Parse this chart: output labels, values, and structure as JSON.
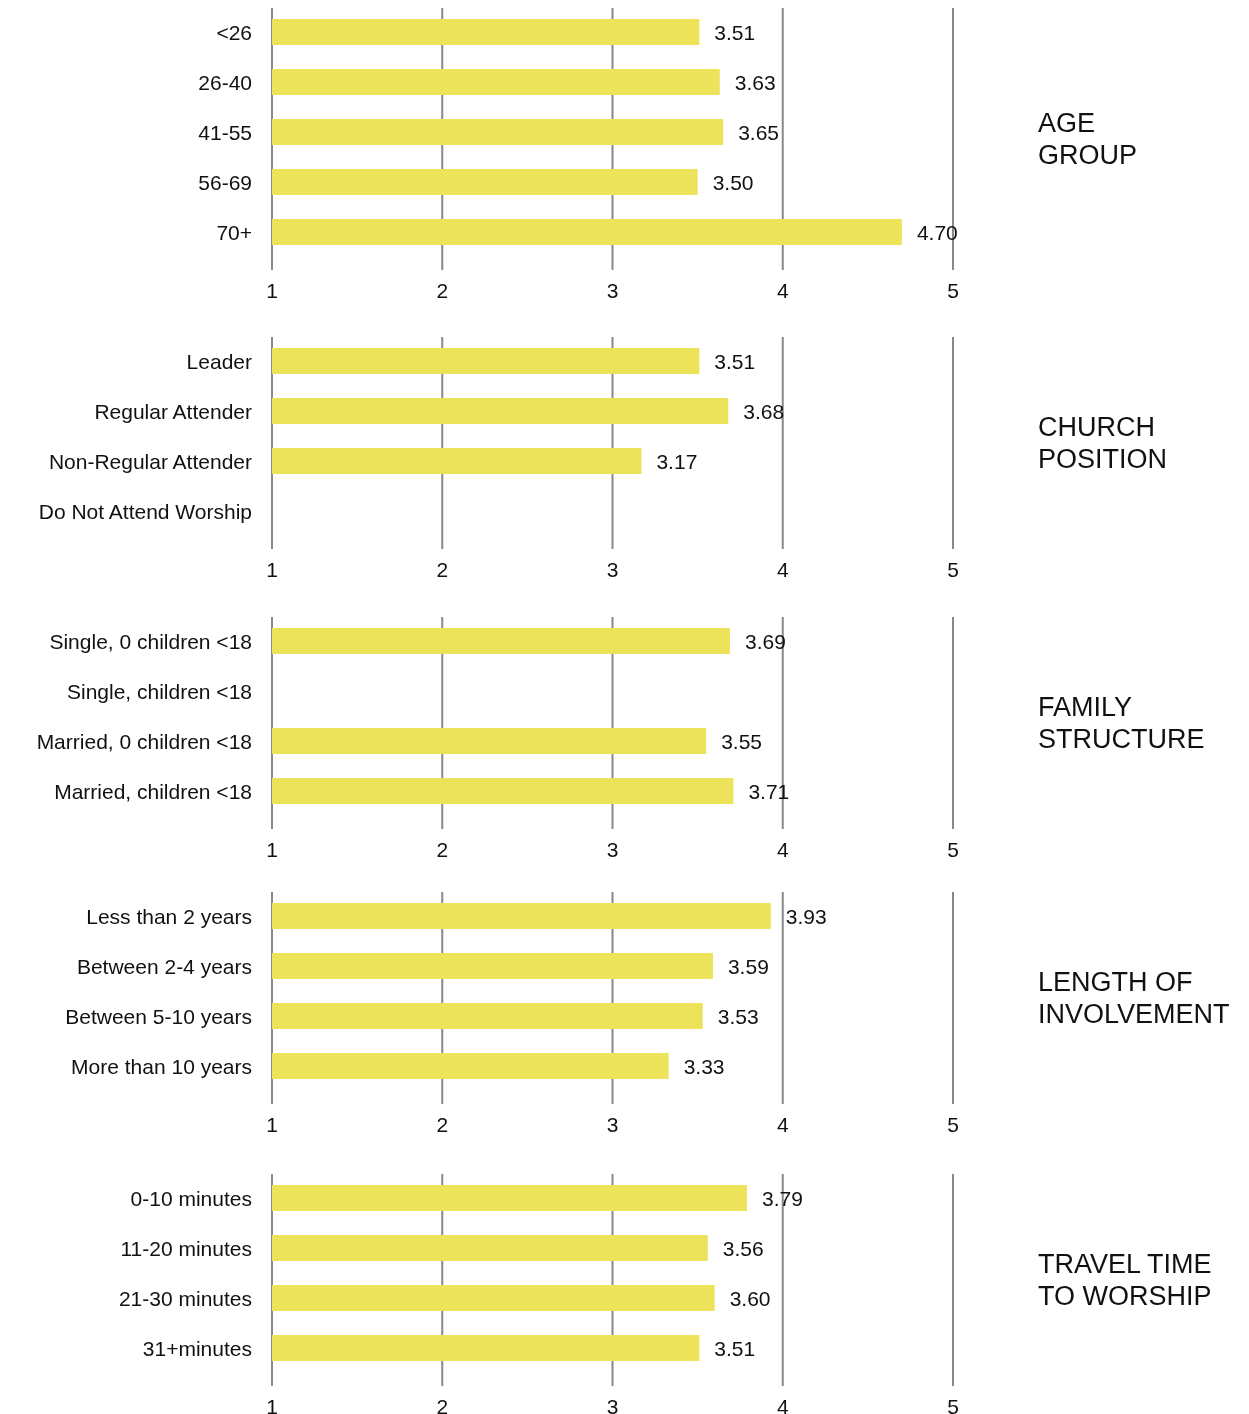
{
  "chart_data": [
    {
      "type": "bar",
      "orientation": "horizontal",
      "y2label": "AGE\nGROUP",
      "categories": [
        "<26",
        "26-40",
        "41-55",
        "56-69",
        "70+"
      ],
      "values": [
        3.51,
        3.63,
        3.65,
        3.5,
        4.7
      ],
      "value_labels": [
        "3.51",
        "3.63",
        "3.65",
        "3.50",
        "4.70"
      ],
      "color": "#ede35a",
      "xlim": [
        1,
        5
      ],
      "xticks": [
        1,
        2,
        3,
        4,
        5
      ],
      "grid": "x"
    },
    {
      "type": "bar",
      "orientation": "horizontal",
      "y2label": "CHURCH\nPOSITION",
      "categories": [
        "Leader",
        "Regular Attender",
        "Non-Regular Attender",
        "Do Not Attend Worship"
      ],
      "values": [
        3.51,
        3.68,
        3.17,
        null
      ],
      "value_labels": [
        "3.51",
        "3.68",
        "3.17",
        null
      ],
      "color": "#ede35a",
      "xlim": [
        1,
        5
      ],
      "xticks": [
        1,
        2,
        3,
        4,
        5
      ],
      "grid": "x"
    },
    {
      "type": "bar",
      "orientation": "horizontal",
      "y2label": "FAMILY\nSTRUCTURE",
      "categories": [
        "Single, 0 children <18",
        "Single, children <18",
        "Married, 0 children <18",
        "Married, children <18"
      ],
      "values": [
        3.69,
        null,
        3.55,
        3.71
      ],
      "value_labels": [
        "3.69",
        null,
        "3.55",
        "3.71"
      ],
      "color": "#ede35a",
      "xlim": [
        1,
        5
      ],
      "xticks": [
        1,
        2,
        3,
        4,
        5
      ],
      "grid": "x"
    },
    {
      "type": "bar",
      "orientation": "horizontal",
      "y2label": "LENGTH OF\nINVOLVEMENT",
      "categories": [
        "Less than 2 years",
        "Between 2-4 years",
        "Between 5-10 years",
        "More than 10 years"
      ],
      "values": [
        3.93,
        3.59,
        3.53,
        3.33
      ],
      "value_labels": [
        "3.93",
        "3.59",
        "3.53",
        "3.33"
      ],
      "color": "#ede35a",
      "xlim": [
        1,
        5
      ],
      "xticks": [
        1,
        2,
        3,
        4,
        5
      ],
      "grid": "x"
    },
    {
      "type": "bar",
      "orientation": "horizontal",
      "y2label": "TRAVEL TIME\nTO WORSHIP",
      "categories": [
        "0-10 minutes",
        "11-20 minutes",
        "21-30 minutes",
        "31+minutes"
      ],
      "values": [
        3.79,
        3.56,
        3.6,
        3.51
      ],
      "value_labels": [
        "3.79",
        "3.56",
        "3.60",
        "3.51"
      ],
      "color": "#ede35a",
      "xlim": [
        1,
        5
      ],
      "xticks": [
        1,
        2,
        3,
        4,
        5
      ],
      "grid": "x"
    }
  ]
}
